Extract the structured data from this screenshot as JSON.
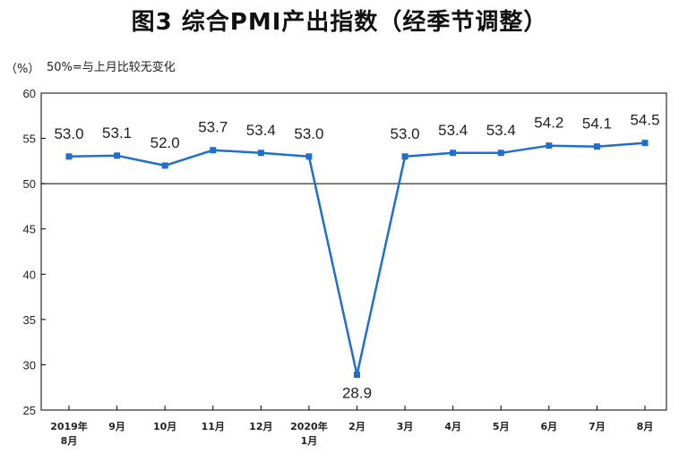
{
  "title": "图3 综合PMI产出指数（经季节调整）",
  "unit_label": "（%）",
  "note": "50%=与上月比较无变化",
  "chart_data": {
    "type": "line",
    "title": "图3 综合PMI产出指数（经季节调整）",
    "ylabel": "（%）",
    "ylim": [
      25,
      60
    ],
    "yticks": [
      25,
      30,
      35,
      40,
      45,
      50,
      55,
      60
    ],
    "reference_line": 50,
    "categories": [
      [
        "2019年",
        "8月"
      ],
      [
        "9月"
      ],
      [
        "10月"
      ],
      [
        "11月"
      ],
      [
        "12月"
      ],
      [
        "2020年",
        "1月"
      ],
      [
        "2月"
      ],
      [
        "3月"
      ],
      [
        "4月"
      ],
      [
        "5月"
      ],
      [
        "6月"
      ],
      [
        "7月"
      ],
      [
        "8月"
      ]
    ],
    "series": [
      {
        "values": [
          53.0,
          53.1,
          52.0,
          53.7,
          53.4,
          53.0,
          28.9,
          53.0,
          53.4,
          53.4,
          54.2,
          54.1,
          54.5
        ],
        "labels": [
          "53.0",
          "53.1",
          "52.0",
          "53.7",
          "53.4",
          "53.0",
          "28.9",
          "53.0",
          "53.4",
          "53.4",
          "54.2",
          "54.1",
          "54.5"
        ]
      }
    ],
    "line_color": "#1f6fd0",
    "grid": false,
    "legend": "none"
  }
}
